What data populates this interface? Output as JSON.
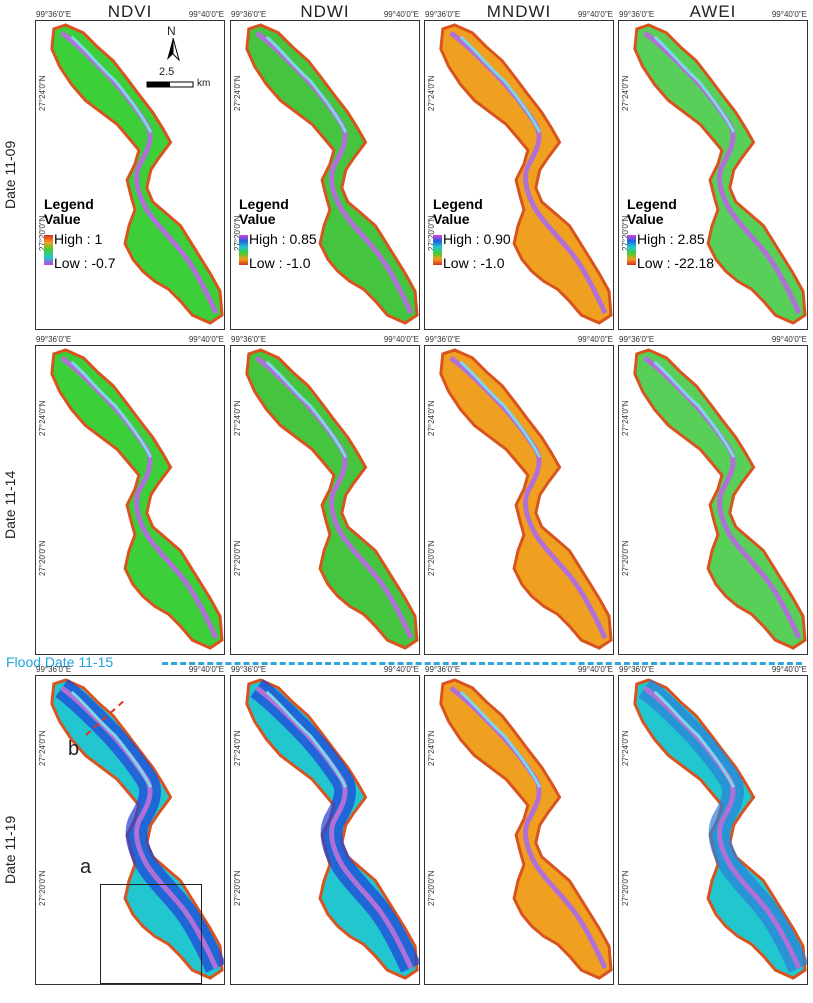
{
  "columns": [
    {
      "label": "NDVI"
    },
    {
      "label": "NDWI"
    },
    {
      "label": "MNDWI"
    },
    {
      "label": "AWEI"
    }
  ],
  "rows": [
    {
      "label": "Date 11-09"
    },
    {
      "label": "Date 11-14"
    },
    {
      "label": "Date 11-19"
    }
  ],
  "coords": {
    "lon_left": "99°36'0\"E",
    "lon_right": "99°40'0\"E",
    "lat_top": "27°24'0\"N",
    "lat_mid": "27°20'0\"N"
  },
  "legends": [
    {
      "title": "Legend",
      "value": "Value",
      "high": "High : 1",
      "low": "Low : -0.7"
    },
    {
      "title": "Legend",
      "value": "Value",
      "high": "High : 0.85",
      "low": "Low : -1.0"
    },
    {
      "title": "Legend",
      "value": "Value",
      "high": "High : 0.90",
      "low": "Low : -1.0"
    },
    {
      "title": "Legend",
      "value": "Value",
      "high": "High : 2.85",
      "low": "Low : -22.18"
    }
  ],
  "scale_bar": {
    "value": "2.5",
    "unit": "km",
    "north": "N"
  },
  "flood": {
    "label": "Flood  Date 11-15"
  },
  "annotations": {
    "a": "a",
    "b": "b"
  },
  "colors": {
    "ndvi_fill": "#3ccf3a",
    "ndwi_fill": "#44c43f",
    "mndwi_fill": "#f0a020",
    "awei_fill": "#58cf58",
    "edge": "#d9531e",
    "river": "#b070d8",
    "flood_blue": "#1e3fd8",
    "flood_cyan": "#22c6cf",
    "dash_blue": "#29a8e0"
  }
}
